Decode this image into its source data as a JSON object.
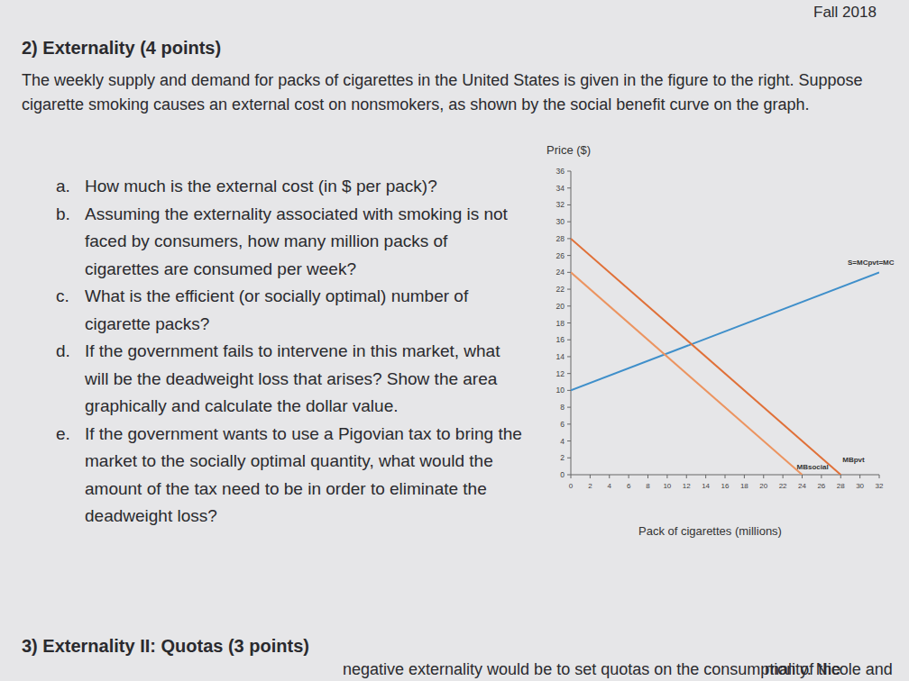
{
  "document": {
    "header": "Fall 2018",
    "section_title": "2) Externality (4 points)",
    "intro": "The weekly supply and demand for packs of cigarettes in the United States is given in the figure to the right. Suppose cigarette smoking causes an external cost on nonsmokers, as shown by the social benefit curve on the graph.",
    "questions": [
      {
        "letter": "a.",
        "text": "How much is the external cost (in $ per pack)?"
      },
      {
        "letter": "b.",
        "text": "Assuming the externality associated with smoking is not faced by consumers, how many million packs of cigarettes are consumed per week?"
      },
      {
        "letter": "c.",
        "text": "What is the efficient (or socially optimal) number of cigarette packs?"
      },
      {
        "letter": "d.",
        "text": "If the government fails to intervene in this market, what will be the deadweight loss that arises? Show the area graphically and calculate the dollar value."
      },
      {
        "letter": "e.",
        "text": "If the government wants to use a Pigovian tax to bring the market to the socially optimal quantity, what would the amount of the tax need to be in order to eliminate the deadweight loss?"
      }
    ],
    "next_section_title": "3) Externality II: Quotas (3 points)",
    "next_section_line": "negative externality would be to set quotas on the consumption of the",
    "next_section_line_end": "rnality. Nicole and"
  },
  "chart_data": {
    "type": "line",
    "y_label": "Price ($)",
    "x_label": "Pack of cigarettes (millions)",
    "xlim": [
      0,
      32
    ],
    "ylim": [
      0,
      36
    ],
    "xticks": [
      0,
      2,
      4,
      6,
      8,
      10,
      12,
      14,
      16,
      18,
      20,
      22,
      24,
      26,
      28,
      30,
      32
    ],
    "yticks": [
      0,
      2,
      4,
      6,
      8,
      10,
      12,
      14,
      16,
      18,
      20,
      22,
      24,
      26,
      28,
      30,
      32,
      34,
      36
    ],
    "grid": false,
    "series": [
      {
        "name": "S=MCpvt=MC",
        "color": "#3f8fca",
        "x": [
          0,
          32
        ],
        "values": [
          10,
          24
        ]
      },
      {
        "name": "MBsocial",
        "color": "#ec9460",
        "x": [
          0,
          24
        ],
        "values": [
          24,
          0
        ]
      },
      {
        "name": "MBpvt",
        "color": "#e07038",
        "x": [
          0,
          28
        ],
        "values": [
          28,
          0
        ]
      }
    ]
  }
}
